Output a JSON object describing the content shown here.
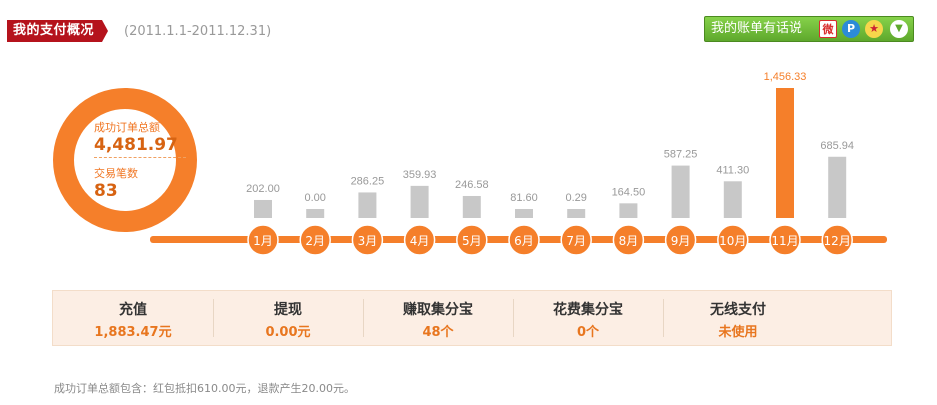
{
  "header": {
    "title": "我的支付概况",
    "date_range": "(2011.1.1-2011.12.31)",
    "bill_button": "我的账单有话说",
    "icons": [
      "sina-weibo-icon",
      "p-icon",
      "star-icon",
      "chevron-down-icon"
    ]
  },
  "summary_ring": {
    "orders_label": "成功订单总额",
    "orders_value": "4,481.97",
    "count_label": "交易笔数",
    "count_value": "83"
  },
  "chart_data": {
    "type": "bar",
    "categories": [
      "1月",
      "2月",
      "3月",
      "4月",
      "5月",
      "6月",
      "7月",
      "8月",
      "9月",
      "10月",
      "11月",
      "12月"
    ],
    "values": [
      202.0,
      0.0,
      286.25,
      359.93,
      246.58,
      81.6,
      0.29,
      164.5,
      587.25,
      411.3,
      1456.33,
      685.94
    ],
    "value_labels": [
      "202.00",
      "0.00",
      "286.25",
      "359.93",
      "246.58",
      "81.60",
      "0.29",
      "164.50",
      "587.25",
      "411.30",
      "1,456.33",
      "685.94"
    ],
    "highlight_index": 10,
    "colors": {
      "bar": "#c8c8c8",
      "highlight": "#f57f2a",
      "axis": "#f57f2a",
      "label": "#999999",
      "highlight_label": "#f57f2a"
    }
  },
  "stats": [
    {
      "label": "充值",
      "value": "1,883.47元"
    },
    {
      "label": "提现",
      "value": "0.00元"
    },
    {
      "label": "赚取集分宝",
      "value": "48个"
    },
    {
      "label": "花费集分宝",
      "value": "0个"
    },
    {
      "label": "无线支付",
      "value": "未使用"
    }
  ],
  "footnote": "成功订单总额包含：红包抵扣610.00元，退款产生20.00元。"
}
